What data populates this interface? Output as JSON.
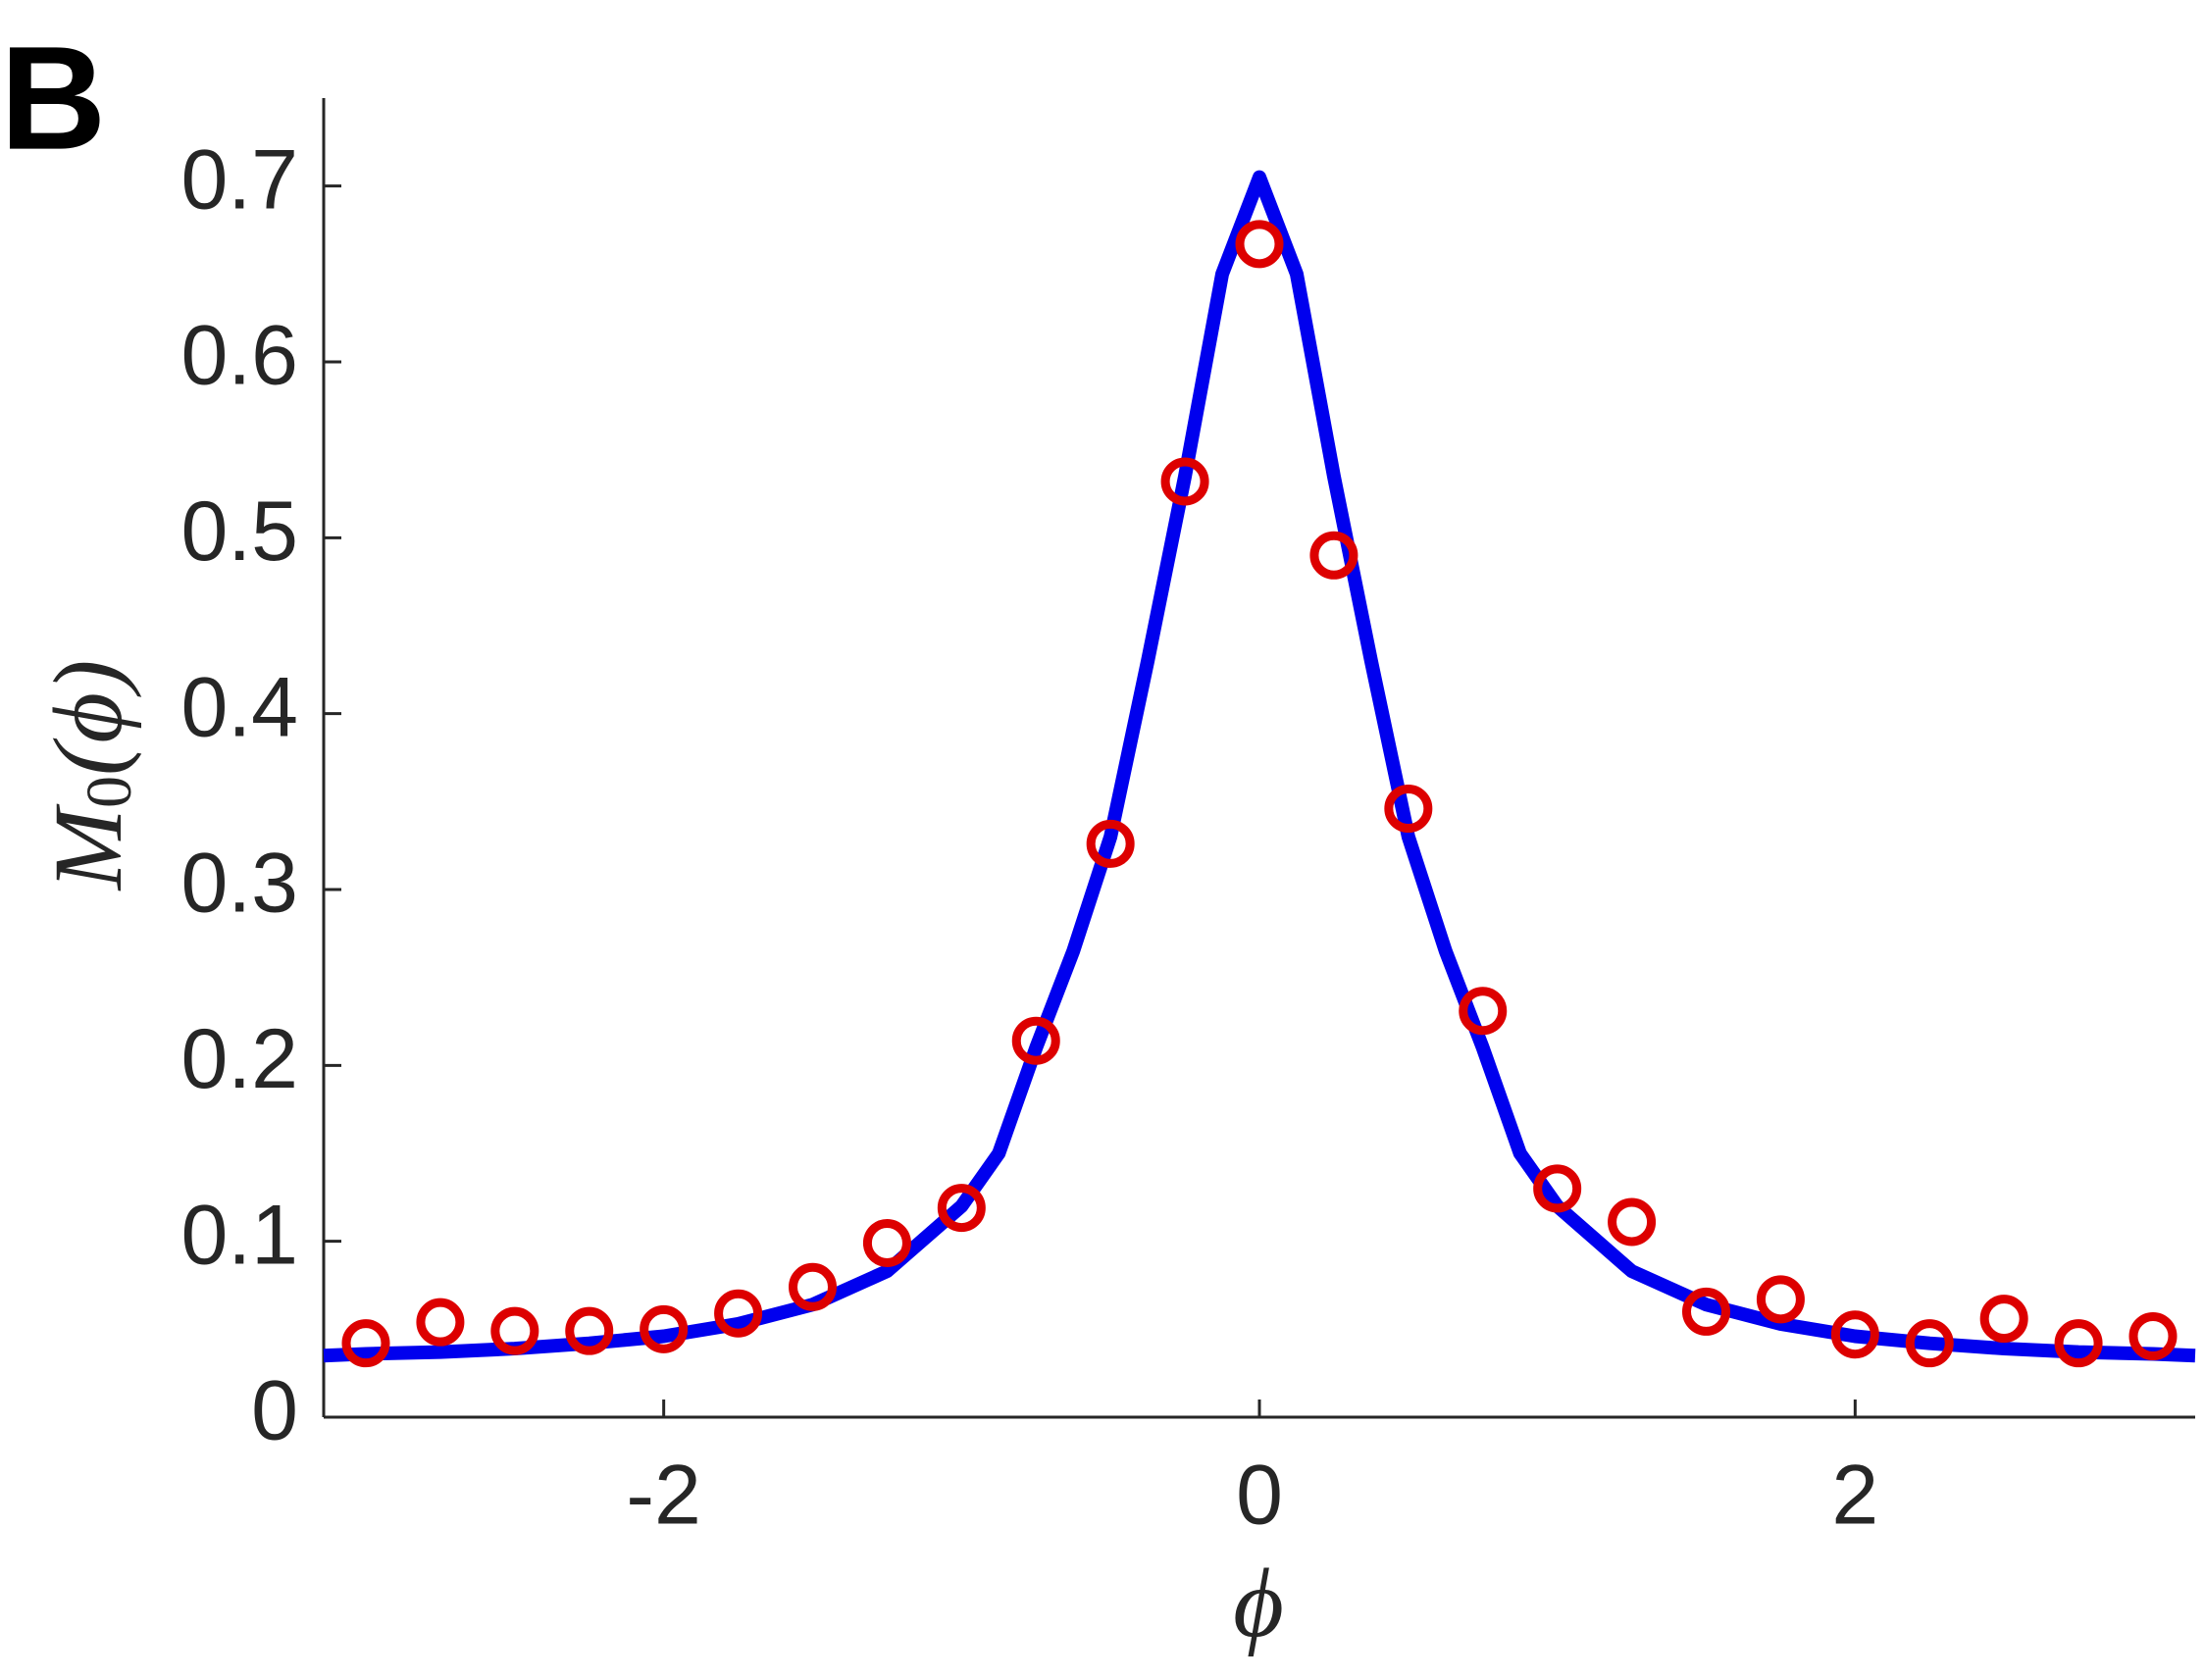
{
  "panel_label": "B",
  "chart_data": {
    "type": "line",
    "x_label": "ϕ",
    "y_label": {
      "main": "M",
      "sub": "0",
      "rest": "(ϕ)"
    },
    "xlim": [
      -3.1416,
      3.1416
    ],
    "ylim": [
      0,
      0.75
    ],
    "xticks": [
      -2,
      0,
      2
    ],
    "yticks": [
      0,
      0.1,
      0.2,
      0.3,
      0.4,
      0.5,
      0.6,
      0.7
    ],
    "series": [
      {
        "style": "line",
        "color": "#0000ee",
        "x": [
          -3.1416,
          -3,
          -2.75,
          -2.5,
          -2.25,
          -2,
          -1.75,
          -1.5,
          -1.25,
          -1,
          -0.875,
          -0.75,
          -0.625,
          -0.5,
          -0.375,
          -0.25,
          -0.125,
          0,
          0.125,
          0.25,
          0.375,
          0.5,
          0.625,
          0.75,
          0.875,
          1,
          1.25,
          1.5,
          1.75,
          2,
          2.25,
          2.5,
          2.75,
          3,
          3.1416
        ],
        "values": [
          0.035,
          0.036,
          0.037,
          0.039,
          0.042,
          0.046,
          0.053,
          0.064,
          0.083,
          0.12,
          0.15,
          0.21,
          0.265,
          0.33,
          0.43,
          0.535,
          0.65,
          0.705,
          0.65,
          0.535,
          0.43,
          0.33,
          0.265,
          0.21,
          0.15,
          0.12,
          0.083,
          0.064,
          0.053,
          0.046,
          0.042,
          0.039,
          0.037,
          0.036,
          0.035
        ]
      },
      {
        "style": "markers",
        "color": "#dd0000",
        "x": [
          -3,
          -2.75,
          -2.5,
          -2.25,
          -2,
          -1.75,
          -1.5,
          -1.25,
          -1,
          -0.75,
          -0.5,
          -0.25,
          0,
          0.25,
          0.5,
          0.75,
          1,
          1.25,
          1.5,
          1.75,
          2,
          2.25,
          2.5,
          2.75,
          3
        ],
        "values": [
          0.042,
          0.054,
          0.049,
          0.049,
          0.05,
          0.059,
          0.074,
          0.099,
          0.119,
          0.214,
          0.326,
          0.532,
          0.667,
          0.49,
          0.346,
          0.231,
          0.13,
          0.111,
          0.06,
          0.067,
          0.047,
          0.042,
          0.056,
          0.042,
          0.046
        ]
      }
    ]
  }
}
